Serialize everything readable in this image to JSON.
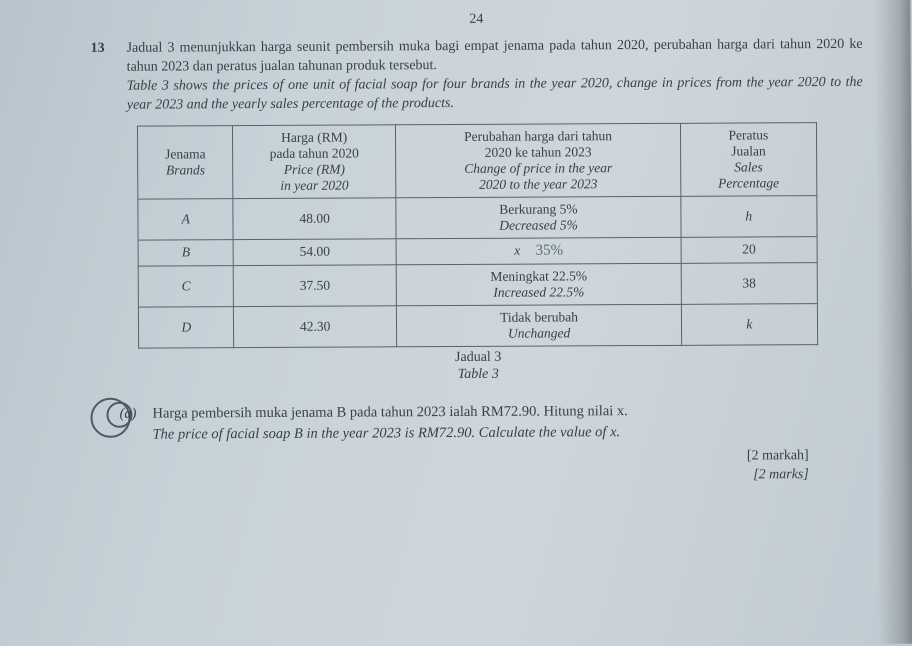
{
  "page_number": "24",
  "question_number": "13",
  "question": {
    "ms_line1": "Jadual 3 menunjukkan harga seunit pembersih muka bagi empat jenama pada tahun 2020,",
    "ms_line2": "perubahan harga dari tahun 2020 ke tahun 2023 dan peratus jualan tahunan produk tersebut.",
    "en_line1": "Table 3 shows the prices of one unit of facial soap for four brands in the year 2020, change",
    "en_line2": "in prices from the year 2020 to the year 2023 and the yearly sales percentage of the products."
  },
  "table": {
    "headers": {
      "brand_ms": "Jenama",
      "brand_en": "Brands",
      "price_ms1": "Harga (RM)",
      "price_ms2": "pada tahun 2020",
      "price_en1": "Price (RM)",
      "price_en2": "in year 2020",
      "change_ms1": "Perubahan harga dari tahun",
      "change_ms2": "2020 ke tahun 2023",
      "change_en1": "Change of price in the year",
      "change_en2": "2020 to the year 2023",
      "pct_ms1": "Peratus",
      "pct_ms2": "Jualan",
      "pct_en1": "Sales",
      "pct_en2": "Percentage"
    },
    "rows": [
      {
        "brand": "A",
        "price": "48.00",
        "change_ms": "Berkurang 5%",
        "change_en": "Decreased 5%",
        "pct": "h"
      },
      {
        "brand": "B",
        "price": "54.00",
        "change_ms": "x",
        "change_hand": "35%",
        "pct": "20"
      },
      {
        "brand": "C",
        "price": "37.50",
        "change_ms": "Meningkat 22.5%",
        "change_en": "Increased 22.5%",
        "pct": "38"
      },
      {
        "brand": "D",
        "price": "42.30",
        "change_ms": "Tidak berubah",
        "change_en": "Unchanged",
        "pct": "k"
      }
    ],
    "caption_ms": "Jadual 3",
    "caption_en": "Table 3"
  },
  "part_a": {
    "label": "(a)",
    "ms": "Harga pembersih muka jenama B pada tahun 2023 ialah RM72.90. Hitung nilai x.",
    "en": "The price of facial soap B in the year 2023 is RM72.90. Calculate the value of x.",
    "marks_ms": "[2 markah]",
    "marks_en": "[2 marks]"
  },
  "col_widths": {
    "brand": "14%",
    "price": "24%",
    "change": "42%",
    "pct": "20%"
  }
}
